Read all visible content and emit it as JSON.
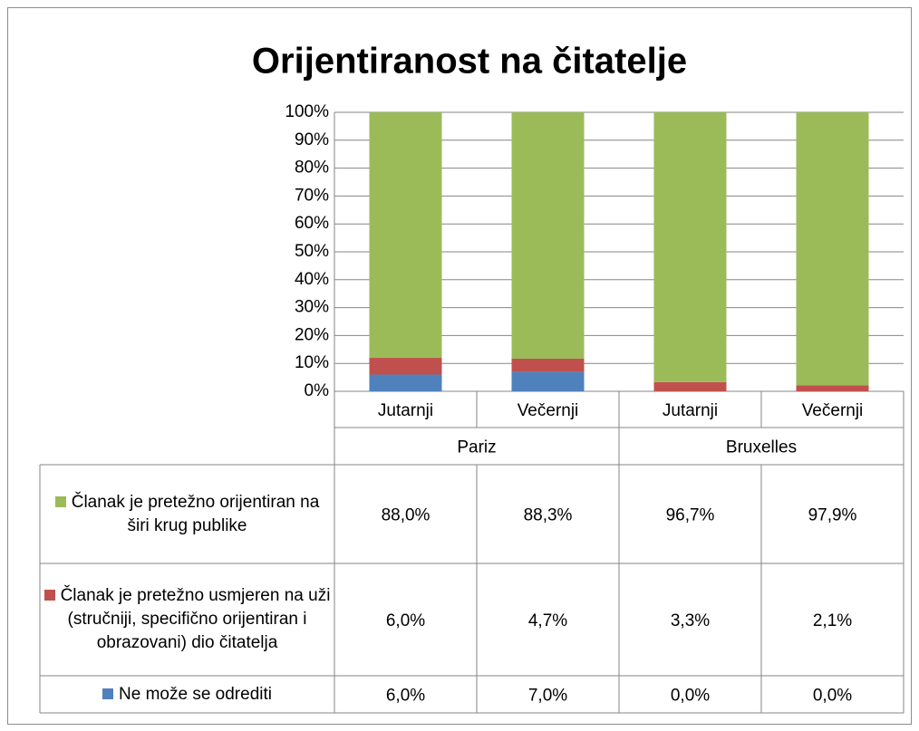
{
  "chart_data": {
    "type": "stacked_bar_100",
    "title": "Orijentiranost na čitatelje",
    "categories": [
      "Jutarnji",
      "Večernji",
      "Jutarnji",
      "Večernji"
    ],
    "groups": [
      "Pariz",
      "Bruxelles"
    ],
    "series": [
      {
        "name": "Članak je pretežno orijentiran na širi krug publike",
        "color": "#9bbb59",
        "values": [
          88.0,
          88.3,
          96.7,
          97.9
        ],
        "value_labels": [
          "88,0%",
          "88,3%",
          "96,7%",
          "97,9%"
        ]
      },
      {
        "name": "Članak je pretežno usmjeren na uži (stručniji, specifično orijentiran i obrazovani) dio čitatelja",
        "color": "#c0504d",
        "values": [
          6.0,
          4.7,
          3.3,
          2.1
        ],
        "value_labels": [
          "6,0%",
          "4,7%",
          "3,3%",
          "2,1%"
        ]
      },
      {
        "name": "Ne može se odrediti",
        "color": "#4f81bd",
        "values": [
          6.0,
          7.0,
          0.0,
          0.0
        ],
        "value_labels": [
          "6,0%",
          "7,0%",
          "0,0%",
          "0,0%"
        ]
      }
    ],
    "ylim": [
      0,
      100
    ],
    "yticks": [
      {
        "value": 0,
        "label": "0%"
      },
      {
        "value": 10,
        "label": "10%"
      },
      {
        "value": 20,
        "label": "20%"
      },
      {
        "value": 30,
        "label": "30%"
      },
      {
        "value": 40,
        "label": "40%"
      },
      {
        "value": 50,
        "label": "50%"
      },
      {
        "value": 60,
        "label": "60%"
      },
      {
        "value": 70,
        "label": "70%"
      },
      {
        "value": 80,
        "label": "80%"
      },
      {
        "value": 90,
        "label": "90%"
      },
      {
        "value": 100,
        "label": "100%"
      }
    ],
    "grid": true
  }
}
